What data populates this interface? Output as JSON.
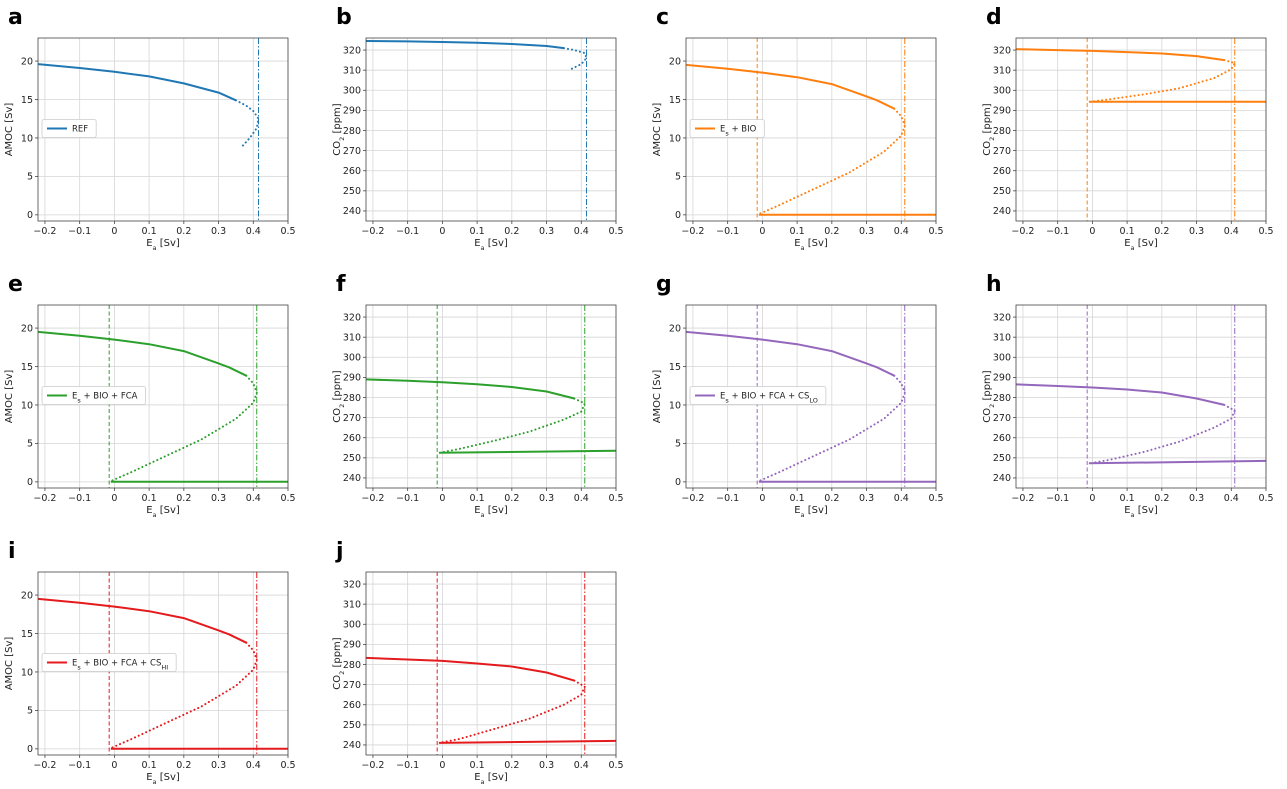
{
  "figure": {
    "title": ""
  },
  "chart_data": [
    {
      "panel": "a",
      "type": "line",
      "xlabel": "E_a [Sv]",
      "ylabel": "AMOC [Sv]",
      "xlim": [
        -0.22,
        0.5
      ],
      "ylim": [
        -0.8,
        23
      ],
      "xticks": [
        -0.2,
        -0.1,
        0,
        0.1,
        0.2,
        0.3,
        0.4,
        0.5
      ],
      "yticks": [
        0,
        5,
        10,
        15,
        20
      ],
      "grid": true,
      "color": "#1f77b4",
      "legend": "REF",
      "legend_position": "center-left",
      "upper": [
        [
          -0.22,
          19.6
        ],
        [
          -0.1,
          19.1
        ],
        [
          0,
          18.6
        ],
        [
          0.1,
          18
        ],
        [
          0.2,
          17.1
        ],
        [
          0.3,
          15.9
        ],
        [
          0.35,
          14.9
        ]
      ],
      "unstable": [
        [
          0.35,
          14.9
        ],
        [
          0.38,
          14.2
        ],
        [
          0.4,
          13.5
        ],
        [
          0.415,
          12.5
        ],
        [
          0.41,
          11.3
        ],
        [
          0.39,
          10
        ],
        [
          0.37,
          9
        ]
      ],
      "lower": [],
      "vlines": [
        {
          "x": 0.415,
          "style": "dashdot"
        }
      ]
    },
    {
      "panel": "b",
      "type": "line",
      "xlabel": "E_a [Sv]",
      "ylabel": "CO2 [ppm]",
      "xlim": [
        -0.22,
        0.5
      ],
      "ylim": [
        235,
        326
      ],
      "xticks": [
        -0.2,
        -0.1,
        0,
        0.1,
        0.2,
        0.3,
        0.4,
        0.5
      ],
      "yticks": [
        240,
        250,
        260,
        270,
        280,
        290,
        300,
        310,
        320
      ],
      "grid": true,
      "color": "#1f77b4",
      "legend": "",
      "legend_position": "",
      "upper": [
        [
          -0.22,
          324.5
        ],
        [
          -0.1,
          324.3
        ],
        [
          0,
          324
        ],
        [
          0.1,
          323.6
        ],
        [
          0.2,
          323
        ],
        [
          0.3,
          322
        ],
        [
          0.35,
          321
        ]
      ],
      "unstable": [
        [
          0.35,
          321
        ],
        [
          0.38,
          320
        ],
        [
          0.41,
          318.5
        ],
        [
          0.415,
          316
        ],
        [
          0.4,
          313
        ],
        [
          0.37,
          310.5
        ]
      ],
      "lower": [],
      "vlines": [
        {
          "x": 0.415,
          "style": "dashdot"
        }
      ]
    },
    {
      "panel": "c",
      "type": "line",
      "xlabel": "E_a [Sv]",
      "ylabel": "AMOC [Sv]",
      "xlim": [
        -0.22,
        0.5
      ],
      "ylim": [
        -0.8,
        23
      ],
      "xticks": [
        -0.2,
        -0.1,
        0,
        0.1,
        0.2,
        0.3,
        0.4,
        0.5
      ],
      "yticks": [
        0,
        5,
        10,
        15,
        20
      ],
      "grid": true,
      "color": "#ff7f0e",
      "legend": "E_s + BIO",
      "legend_position": "center-left",
      "upper": [
        [
          -0.22,
          19.5
        ],
        [
          -0.1,
          19
        ],
        [
          0,
          18.5
        ],
        [
          0.1,
          17.9
        ],
        [
          0.2,
          17
        ],
        [
          0.3,
          15.4
        ],
        [
          0.33,
          14.9
        ],
        [
          0.38,
          13.8
        ]
      ],
      "unstable": [
        [
          0.38,
          13.8
        ],
        [
          0.4,
          12.8
        ],
        [
          0.41,
          11.6
        ],
        [
          0.4,
          10.3
        ],
        [
          0.35,
          8.2
        ],
        [
          0.25,
          5.5
        ],
        [
          0.15,
          3.4
        ],
        [
          0.05,
          1.3
        ],
        [
          -0.01,
          0.1
        ]
      ],
      "lower": [
        [
          -0.01,
          0
        ],
        [
          0.5,
          0
        ]
      ],
      "vlines": [
        {
          "x": -0.015,
          "style": "dashed"
        },
        {
          "x": 0.41,
          "style": "dashdot"
        }
      ]
    },
    {
      "panel": "d",
      "type": "line",
      "xlabel": "E_a [Sv]",
      "ylabel": "CO2 [ppm]",
      "xlim": [
        -0.22,
        0.5
      ],
      "ylim": [
        235,
        326
      ],
      "xticks": [
        -0.2,
        -0.1,
        0,
        0.1,
        0.2,
        0.3,
        0.4,
        0.5
      ],
      "yticks": [
        240,
        250,
        260,
        270,
        280,
        290,
        300,
        310,
        320
      ],
      "grid": true,
      "color": "#ff7f0e",
      "legend": "",
      "legend_position": "",
      "upper": [
        [
          -0.22,
          320.5
        ],
        [
          -0.1,
          320
        ],
        [
          0,
          319.6
        ],
        [
          0.1,
          319
        ],
        [
          0.2,
          318.3
        ],
        [
          0.3,
          317
        ],
        [
          0.38,
          315
        ]
      ],
      "unstable": [
        [
          0.38,
          315
        ],
        [
          0.41,
          313.5
        ],
        [
          0.4,
          310.5
        ],
        [
          0.35,
          306
        ],
        [
          0.25,
          301
        ],
        [
          0.15,
          298
        ],
        [
          0.05,
          295.5
        ],
        [
          0,
          294.4
        ]
      ],
      "lower": [
        [
          -0.01,
          294.3
        ],
        [
          0.5,
          294.3
        ]
      ],
      "vlines": [
        {
          "x": -0.015,
          "style": "dashed"
        },
        {
          "x": 0.41,
          "style": "dashdot"
        }
      ]
    },
    {
      "panel": "e",
      "type": "line",
      "xlabel": "E_a [Sv]",
      "ylabel": "AMOC [Sv]",
      "xlim": [
        -0.22,
        0.5
      ],
      "ylim": [
        -0.8,
        23
      ],
      "xticks": [
        -0.2,
        -0.1,
        0,
        0.1,
        0.2,
        0.3,
        0.4,
        0.5
      ],
      "yticks": [
        0,
        5,
        10,
        15,
        20
      ],
      "grid": true,
      "color": "#2ca02c",
      "legend": "E_s + BIO + FCA",
      "legend_position": "center-left",
      "upper": [
        [
          -0.22,
          19.5
        ],
        [
          -0.1,
          19
        ],
        [
          0,
          18.5
        ],
        [
          0.1,
          17.9
        ],
        [
          0.2,
          17
        ],
        [
          0.3,
          15.4
        ],
        [
          0.33,
          14.9
        ],
        [
          0.38,
          13.8
        ]
      ],
      "unstable": [
        [
          0.38,
          13.8
        ],
        [
          0.4,
          12.8
        ],
        [
          0.41,
          11.6
        ],
        [
          0.4,
          10.3
        ],
        [
          0.35,
          8.2
        ],
        [
          0.25,
          5.5
        ],
        [
          0.15,
          3.4
        ],
        [
          0.05,
          1.3
        ],
        [
          -0.01,
          0.1
        ]
      ],
      "lower": [
        [
          -0.01,
          0
        ],
        [
          0.5,
          0
        ]
      ],
      "vlines": [
        {
          "x": -0.015,
          "style": "dashed"
        },
        {
          "x": 0.41,
          "style": "dashdot"
        }
      ]
    },
    {
      "panel": "f",
      "type": "line",
      "xlabel": "E_a [Sv]",
      "ylabel": "CO2 [ppm]",
      "xlim": [
        -0.22,
        0.5
      ],
      "ylim": [
        235,
        326
      ],
      "xticks": [
        -0.2,
        -0.1,
        0,
        0.1,
        0.2,
        0.3,
        0.4,
        0.5
      ],
      "yticks": [
        240,
        250,
        260,
        270,
        280,
        290,
        300,
        310,
        320
      ],
      "grid": true,
      "color": "#2ca02c",
      "legend": "",
      "legend_position": "",
      "upper": [
        [
          -0.22,
          289
        ],
        [
          -0.1,
          288.3
        ],
        [
          0,
          287.6
        ],
        [
          0.1,
          286.6
        ],
        [
          0.2,
          285.2
        ],
        [
          0.3,
          283
        ],
        [
          0.38,
          279.5
        ]
      ],
      "unstable": [
        [
          0.38,
          279.5
        ],
        [
          0.41,
          277
        ],
        [
          0.4,
          273
        ],
        [
          0.35,
          269
        ],
        [
          0.25,
          263
        ],
        [
          0.15,
          258.5
        ],
        [
          0.05,
          254.5
        ],
        [
          0,
          252.8
        ]
      ],
      "lower": [
        [
          -0.01,
          252.5
        ],
        [
          0.5,
          253.5
        ]
      ],
      "vlines": [
        {
          "x": -0.015,
          "style": "dashed"
        },
        {
          "x": 0.41,
          "style": "dashdot"
        }
      ]
    },
    {
      "panel": "g",
      "type": "line",
      "xlabel": "E_a [Sv]",
      "ylabel": "AMOC [Sv]",
      "xlim": [
        -0.22,
        0.5
      ],
      "ylim": [
        -0.8,
        23
      ],
      "xticks": [
        -0.2,
        -0.1,
        0,
        0.1,
        0.2,
        0.3,
        0.4,
        0.5
      ],
      "yticks": [
        0,
        5,
        10,
        15,
        20
      ],
      "grid": true,
      "color": "#9467bd",
      "legend": "E_s + BIO + FCA + CS_LO",
      "legend_position": "center-left",
      "upper": [
        [
          -0.22,
          19.5
        ],
        [
          -0.1,
          19
        ],
        [
          0,
          18.5
        ],
        [
          0.1,
          17.9
        ],
        [
          0.2,
          17
        ],
        [
          0.3,
          15.4
        ],
        [
          0.33,
          14.9
        ],
        [
          0.38,
          13.8
        ]
      ],
      "unstable": [
        [
          0.38,
          13.8
        ],
        [
          0.4,
          12.8
        ],
        [
          0.41,
          11.6
        ],
        [
          0.4,
          10.3
        ],
        [
          0.35,
          8.2
        ],
        [
          0.25,
          5.5
        ],
        [
          0.15,
          3.4
        ],
        [
          0.05,
          1.3
        ],
        [
          -0.01,
          0.1
        ]
      ],
      "lower": [
        [
          -0.01,
          0
        ],
        [
          0.5,
          0
        ]
      ],
      "vlines": [
        {
          "x": -0.015,
          "style": "dashed"
        },
        {
          "x": 0.41,
          "style": "dashdot"
        }
      ]
    },
    {
      "panel": "h",
      "type": "line",
      "xlabel": "E_a [Sv]",
      "ylabel": "CO2 [ppm]",
      "xlim": [
        -0.22,
        0.5
      ],
      "ylim": [
        235,
        326
      ],
      "xticks": [
        -0.2,
        -0.1,
        0,
        0.1,
        0.2,
        0.3,
        0.4,
        0.5
      ],
      "yticks": [
        240,
        250,
        260,
        270,
        280,
        290,
        300,
        310,
        320
      ],
      "grid": true,
      "color": "#9467bd",
      "legend": "",
      "legend_position": "",
      "upper": [
        [
          -0.22,
          286.5
        ],
        [
          -0.1,
          285.7
        ],
        [
          0,
          285
        ],
        [
          0.1,
          284
        ],
        [
          0.2,
          282.5
        ],
        [
          0.3,
          279.5
        ],
        [
          0.38,
          276.3
        ]
      ],
      "unstable": [
        [
          0.38,
          276.3
        ],
        [
          0.41,
          273.5
        ],
        [
          0.4,
          269.5
        ],
        [
          0.35,
          265
        ],
        [
          0.25,
          258
        ],
        [
          0.15,
          253
        ],
        [
          0.05,
          249
        ],
        [
          0,
          247.5
        ]
      ],
      "lower": [
        [
          -0.01,
          247.3
        ],
        [
          0.5,
          248.5
        ]
      ],
      "vlines": [
        {
          "x": -0.015,
          "style": "dashed"
        },
        {
          "x": 0.41,
          "style": "dashdot"
        }
      ]
    },
    {
      "panel": "i",
      "type": "line",
      "xlabel": "E_a [Sv]",
      "ylabel": "AMOC [Sv]",
      "xlim": [
        -0.22,
        0.5
      ],
      "ylim": [
        -0.8,
        23
      ],
      "xticks": [
        -0.2,
        -0.1,
        0,
        0.1,
        0.2,
        0.3,
        0.4,
        0.5
      ],
      "yticks": [
        0,
        5,
        10,
        15,
        20
      ],
      "grid": true,
      "color": "#e41a1c",
      "legend": "E_s + BIO + FCA + CS_HI",
      "legend_position": "center-left",
      "upper": [
        [
          -0.22,
          19.5
        ],
        [
          -0.1,
          19
        ],
        [
          0,
          18.5
        ],
        [
          0.1,
          17.9
        ],
        [
          0.2,
          17
        ],
        [
          0.3,
          15.4
        ],
        [
          0.33,
          14.9
        ],
        [
          0.38,
          13.8
        ]
      ],
      "unstable": [
        [
          0.38,
          13.8
        ],
        [
          0.4,
          12.8
        ],
        [
          0.41,
          11.6
        ],
        [
          0.4,
          10.3
        ],
        [
          0.35,
          8.2
        ],
        [
          0.25,
          5.5
        ],
        [
          0.15,
          3.4
        ],
        [
          0.05,
          1.3
        ],
        [
          -0.01,
          0.1
        ]
      ],
      "lower": [
        [
          -0.01,
          0
        ],
        [
          0.5,
          0
        ]
      ],
      "vlines": [
        {
          "x": -0.015,
          "style": "dashed"
        },
        {
          "x": 0.41,
          "style": "dashdot"
        }
      ]
    },
    {
      "panel": "j",
      "type": "line",
      "xlabel": "E_a [Sv]",
      "ylabel": "CO2 [ppm]",
      "xlim": [
        -0.22,
        0.5
      ],
      "ylim": [
        235,
        326
      ],
      "xticks": [
        -0.2,
        -0.1,
        0,
        0.1,
        0.2,
        0.3,
        0.4,
        0.5
      ],
      "yticks": [
        240,
        250,
        260,
        270,
        280,
        290,
        300,
        310,
        320
      ],
      "grid": true,
      "color": "#e41a1c",
      "legend": "",
      "legend_position": "",
      "upper": [
        [
          -0.22,
          283.3
        ],
        [
          -0.1,
          282.5
        ],
        [
          0,
          281.8
        ],
        [
          0.1,
          280.5
        ],
        [
          0.2,
          279
        ],
        [
          0.3,
          276
        ],
        [
          0.38,
          272
        ]
      ],
      "unstable": [
        [
          0.38,
          272
        ],
        [
          0.41,
          269
        ],
        [
          0.4,
          265
        ],
        [
          0.35,
          260
        ],
        [
          0.25,
          253
        ],
        [
          0.15,
          248
        ],
        [
          0.05,
          243
        ],
        [
          0,
          241.3
        ]
      ],
      "lower": [
        [
          -0.01,
          241
        ],
        [
          0.5,
          242
        ]
      ],
      "vlines": [
        {
          "x": -0.015,
          "style": "dashed"
        },
        {
          "x": 0.41,
          "style": "dashdot"
        }
      ]
    }
  ]
}
